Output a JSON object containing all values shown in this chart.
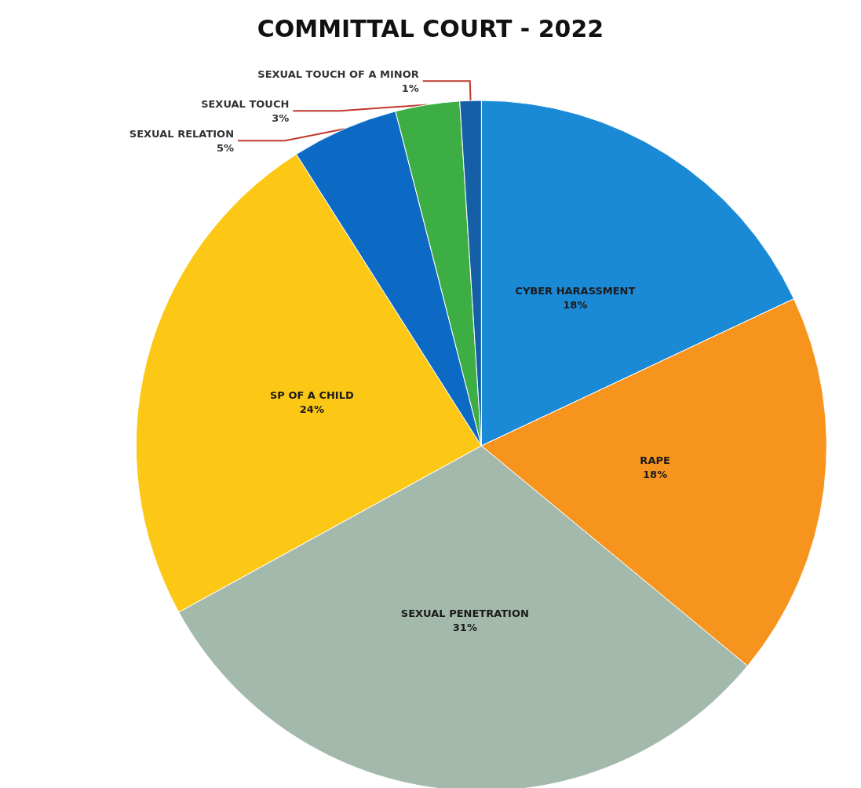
{
  "chart_data": {
    "type": "pie",
    "title": "COMMITTAL COURT - 2022",
    "categories": [
      "CYBER HARASSMENT",
      "RAPE",
      "SEXUAL PENETRATION",
      "SP OF A CHILD",
      "SEXUAL RELATION",
      "SEXUAL TOUCH",
      "SEXUAL TOUCH OF A MINOR"
    ],
    "values": [
      18,
      18,
      31,
      24,
      5,
      3,
      1
    ],
    "value_labels": [
      "18%",
      "18%",
      "31%",
      "24%",
      "5%",
      "3%",
      "1%"
    ],
    "colors": [
      "#1b8ad6",
      "#f7941d",
      "#a3b9ab",
      "#fcc815",
      "#0c6ac4",
      "#3cae43",
      "#155fa6"
    ],
    "legend": false
  }
}
